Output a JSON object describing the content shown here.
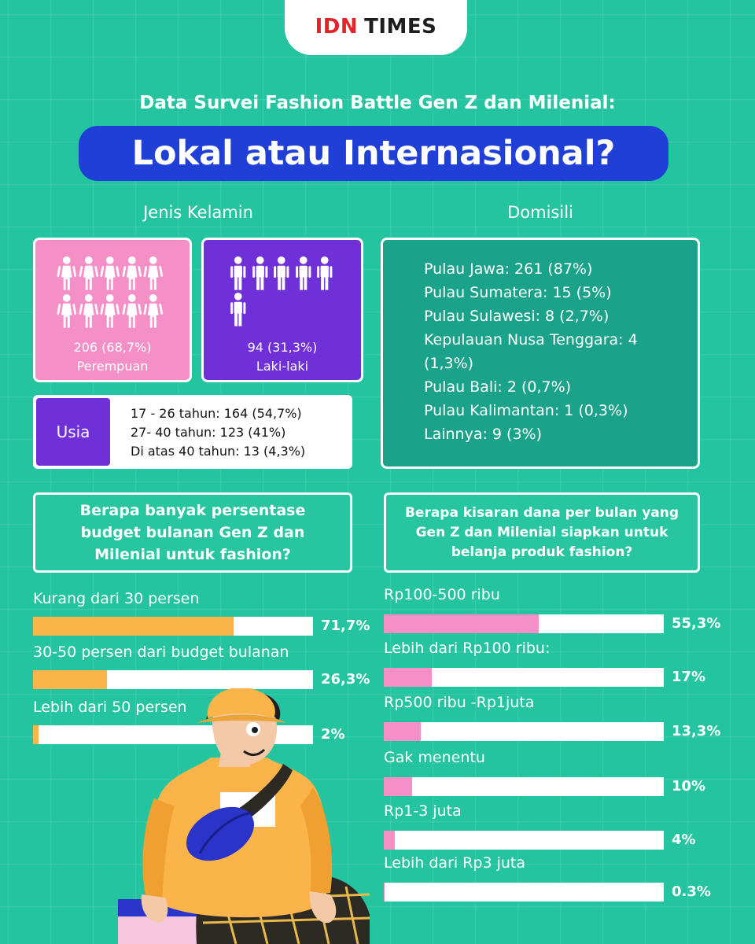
{
  "logo": {
    "idn": "IDN",
    "times": "TIMES"
  },
  "subtitle": "Data Survei Fashion Battle Gen Z dan Milenial:",
  "title": "Lokal atau Internasional?",
  "gender": {
    "heading": "Jenis Kelamin",
    "female": {
      "value": "206 (68,7%)",
      "label": "Perempuan",
      "icon": "female-person-icon"
    },
    "male": {
      "value": "94 (31,3%)",
      "label": "Laki-laki",
      "icon": "male-person-icon"
    }
  },
  "usia": {
    "label": "Usia",
    "lines": [
      "17 - 26 tahun: 164 (54,7%)",
      "27- 40 tahun: 123 (41%)",
      "Di atas 40 tahun: 13 (4,3%)"
    ]
  },
  "domisili": {
    "heading": "Domisili",
    "lines": [
      "Pulau Jawa: 261 (87%)",
      "Pulau Sumatera: 15 (5%)",
      "Pulau Sulawesi: 8 (2,7%)",
      "Kepulauan Nusa Tenggara: 4 (1,3%)",
      "Pulau Bali: 2 (0,7%)",
      "Pulau Kalimantan: 1 (0,3%)",
      "Lainnya: 9 (3%)"
    ]
  },
  "colors": {
    "background": "#23c49f",
    "title_pill": "#1f3fd6",
    "female_card": "#f48fc7",
    "male_card": "#7030d8",
    "budget_bar": "#fbb44a",
    "fund_bar": "#f48fc7"
  },
  "chart_data": [
    {
      "type": "bar",
      "title": "Berapa banyak persentase budget bulanan Gen Z dan Milenial untuk fashion?",
      "categories": [
        "Kurang dari 30 persen",
        "30-50 persen dari budget bulanan",
        "Lebih dari 50 persen"
      ],
      "values": [
        71.7,
        26.3,
        2
      ],
      "value_labels": [
        "71,7%",
        "26,3%",
        "2%"
      ],
      "ylim": [
        0,
        100
      ],
      "orientation": "horizontal"
    },
    {
      "type": "bar",
      "title": "Berapa kisaran dana per bulan yang Gen Z dan Milenial siapkan untuk belanja produk fashion?",
      "categories": [
        "Rp100-500 ribu",
        "Lebih dari Rp100 ribu:",
        "Rp500 ribu -Rp1juta",
        "Gak menentu",
        "Rp1-3 juta",
        "Lebih dari Rp3 juta"
      ],
      "values": [
        55.3,
        17,
        13.3,
        10,
        4,
        0.3
      ],
      "value_labels": [
        "55,3%",
        "17%",
        "13,3%",
        "10%",
        "4%",
        "0.3%"
      ],
      "ylim": [
        0,
        100
      ],
      "orientation": "horizontal"
    }
  ]
}
